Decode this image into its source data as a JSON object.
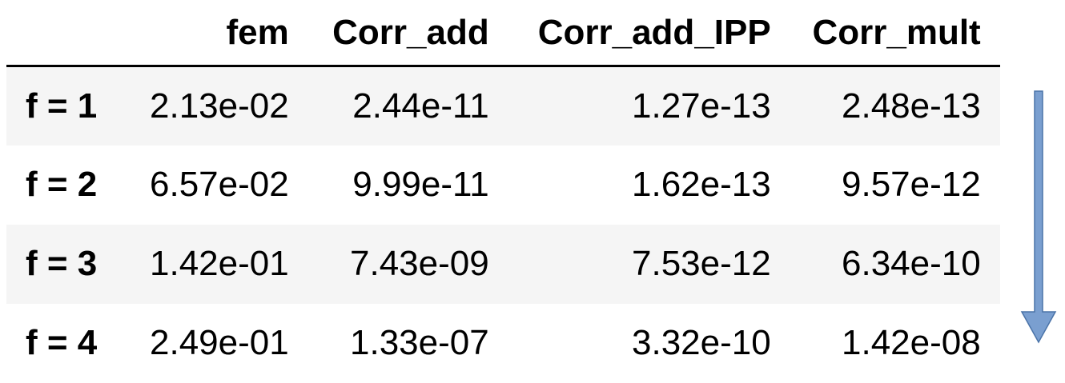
{
  "table": {
    "columns": [
      "",
      "fem",
      "Corr_add",
      "Corr_add_IPP",
      "Corr_mult"
    ],
    "rows": [
      {
        "label": "f = 1",
        "values": [
          "2.13e-02",
          "2.44e-11",
          "1.27e-13",
          "2.48e-13"
        ]
      },
      {
        "label": "f = 2",
        "values": [
          "6.57e-02",
          "9.99e-11",
          "1.62e-13",
          "9.57e-12"
        ]
      },
      {
        "label": "f = 3",
        "values": [
          "1.42e-01",
          "7.43e-09",
          "7.53e-12",
          "6.34e-10"
        ]
      },
      {
        "label": "f = 4",
        "values": [
          "2.49e-01",
          "1.33e-07",
          "3.32e-10",
          "1.42e-08"
        ]
      }
    ]
  },
  "arrow": {
    "icon": "arrow-down-icon",
    "fill": "#7a9fd0",
    "stroke": "#4a73a8"
  }
}
